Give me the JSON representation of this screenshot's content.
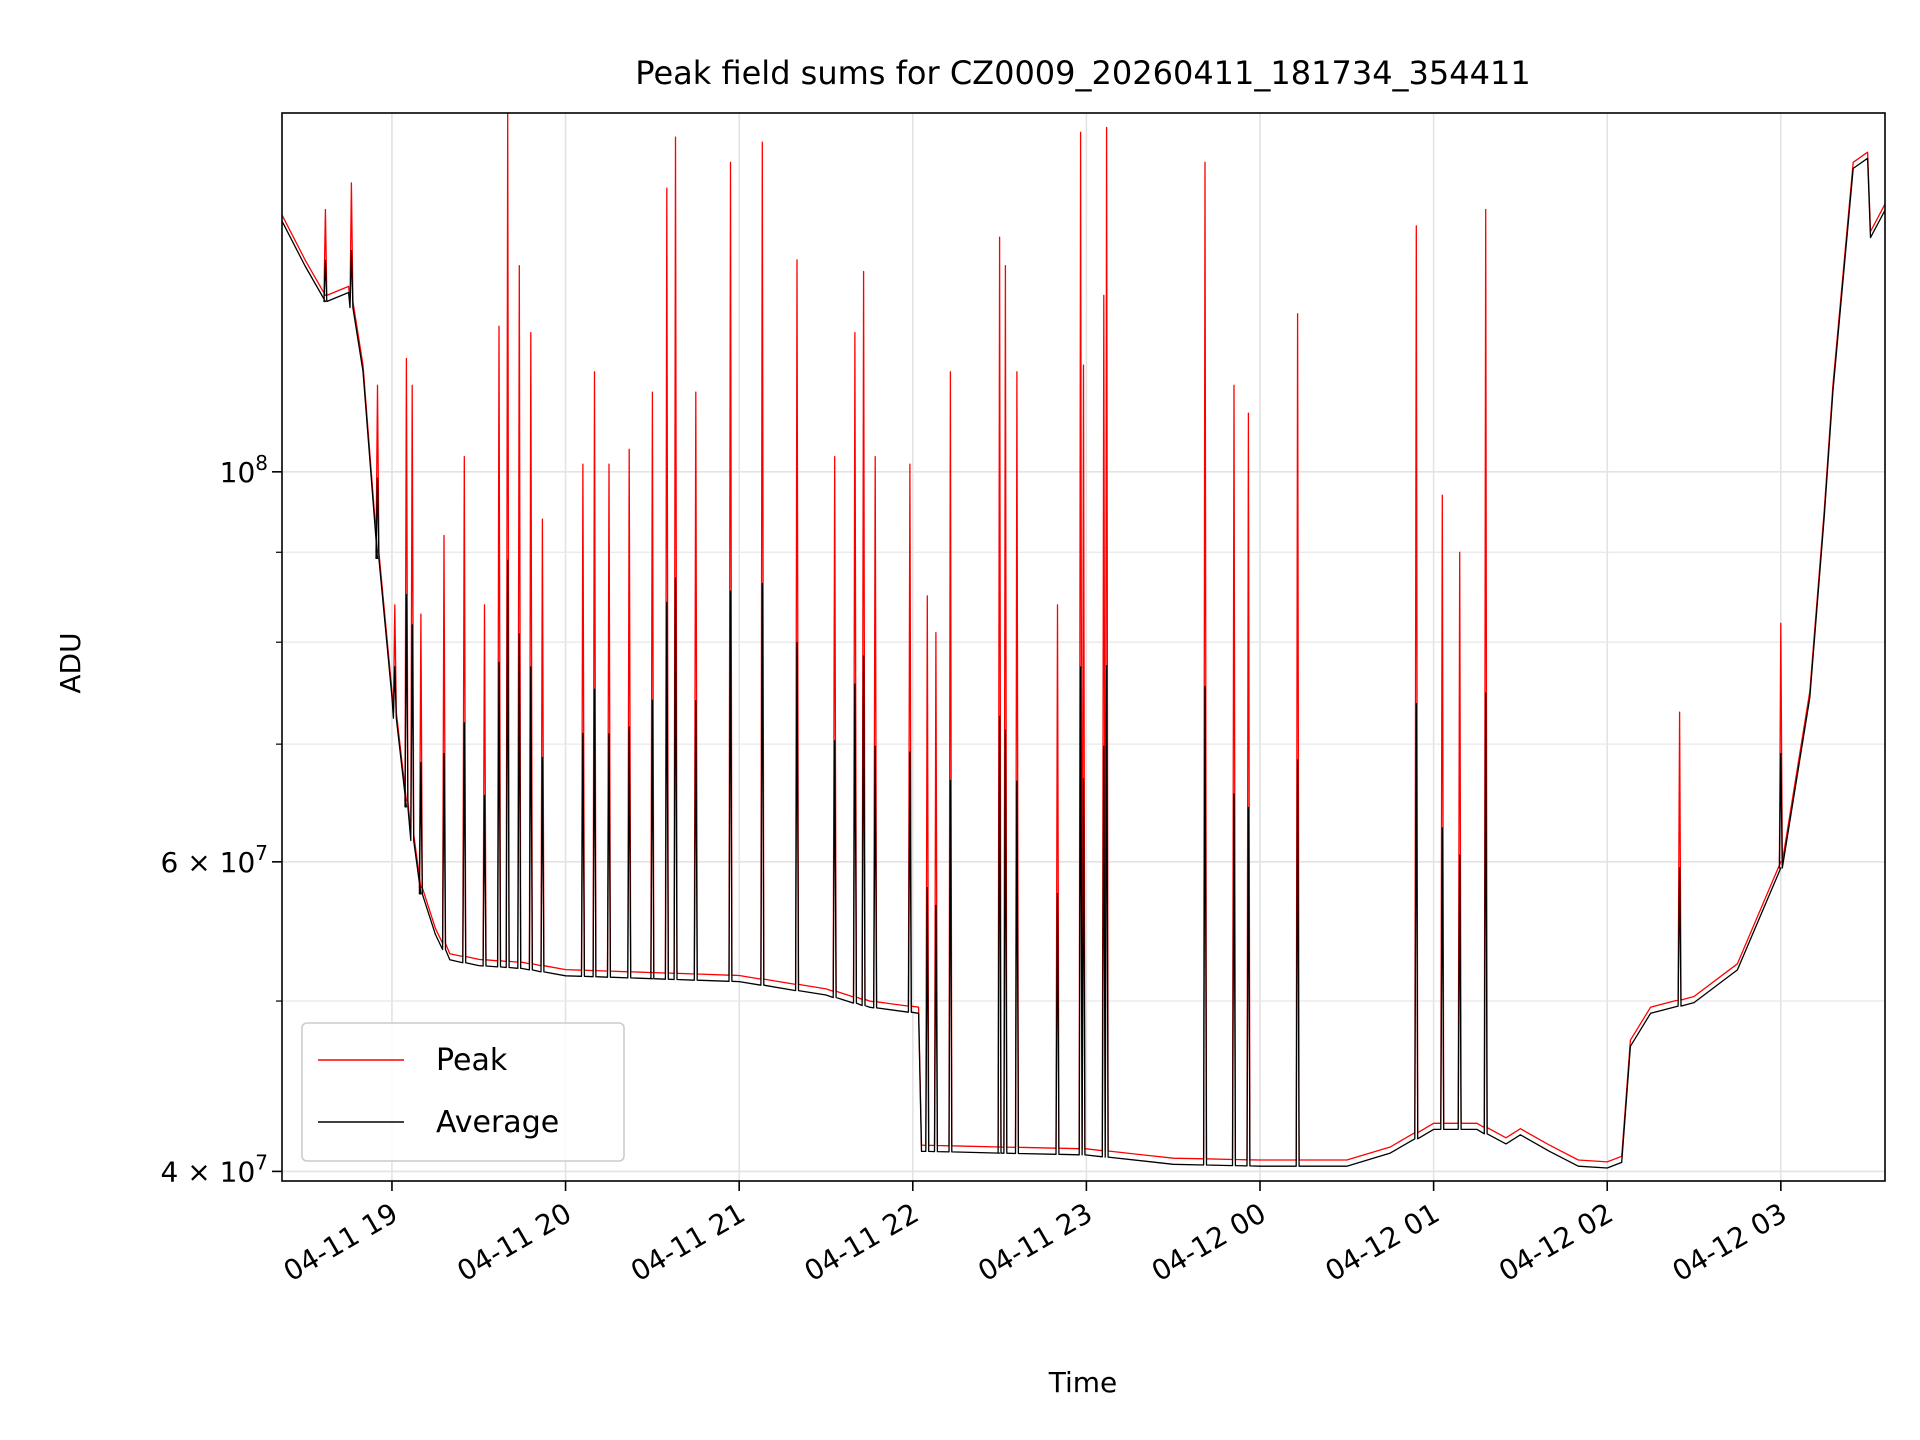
{
  "chart_data": {
    "type": "line",
    "title": "Peak field sums for CZ0009_20260411_181734_354411",
    "xlabel": "Time",
    "ylabel": "ADU",
    "y_scale": "log",
    "ylim": [
      39500000,
      160000000
    ],
    "xlim": [
      "2026-04-11 18:22",
      "2026-04-12 03:36"
    ],
    "grid": true,
    "legend_position": "lower-left",
    "x_ticks": [
      {
        "t": "2026-04-11 19:00",
        "label": "04-11 19"
      },
      {
        "t": "2026-04-11 20:00",
        "label": "04-11 20"
      },
      {
        "t": "2026-04-11 21:00",
        "label": "04-11 21"
      },
      {
        "t": "2026-04-11 22:00",
        "label": "04-11 22"
      },
      {
        "t": "2026-04-11 23:00",
        "label": "04-11 23"
      },
      {
        "t": "2026-04-12 00:00",
        "label": "04-12 00"
      },
      {
        "t": "2026-04-12 01:00",
        "label": "04-12 01"
      },
      {
        "t": "2026-04-12 02:00",
        "label": "04-12 02"
      },
      {
        "t": "2026-04-12 03:00",
        "label": "04-12 03"
      }
    ],
    "y_ticks_major": [
      {
        "v": 40000000,
        "label": "4 × 10",
        "exp": "7"
      },
      {
        "v": 60000000,
        "label": "6 × 10",
        "exp": "7"
      },
      {
        "v": 100000000,
        "label": "10",
        "exp": "8"
      }
    ],
    "y_ticks_minor": [
      50000000,
      70000000,
      80000000,
      90000000
    ],
    "series": [
      {
        "name": "Peak",
        "color": "#ff0000",
        "baseline": [
          [
            "2026-04-11 18:22",
            140000000
          ],
          [
            "2026-04-11 18:30",
            132000000
          ],
          [
            "2026-04-11 18:37",
            126000000
          ],
          [
            "2026-04-11 18:45",
            127500000
          ],
          [
            "2026-04-11 18:50",
            115000000
          ],
          [
            "2026-04-11 18:55",
            90000000
          ],
          [
            "2026-04-11 19:00",
            75000000
          ],
          [
            "2026-04-11 19:05",
            65000000
          ],
          [
            "2026-04-11 19:10",
            58000000
          ],
          [
            "2026-04-11 19:15",
            55000000
          ],
          [
            "2026-04-11 19:20",
            53200000
          ],
          [
            "2026-04-11 19:30",
            52800000
          ],
          [
            "2026-04-11 19:45",
            52600000
          ],
          [
            "2026-04-11 20:00",
            52100000
          ],
          [
            "2026-04-11 20:30",
            51900000
          ],
          [
            "2026-04-11 21:00",
            51700000
          ],
          [
            "2026-04-11 21:30",
            50800000
          ],
          [
            "2026-04-11 21:45",
            50000000
          ],
          [
            "2026-04-11 22:02",
            49600000
          ],
          [
            "2026-04-11 22:03",
            41400000
          ],
          [
            "2026-04-11 22:30",
            41300000
          ],
          [
            "2026-04-11 23:00",
            41200000
          ],
          [
            "2026-04-11 23:30",
            40700000
          ],
          [
            "2026-04-12 00:00",
            40600000
          ],
          [
            "2026-04-12 00:30",
            40600000
          ],
          [
            "2026-04-12 00:45",
            41300000
          ],
          [
            "2026-04-12 01:00",
            42600000
          ],
          [
            "2026-04-12 01:15",
            42600000
          ],
          [
            "2026-04-12 01:25",
            41800000
          ],
          [
            "2026-04-12 01:30",
            42300000
          ],
          [
            "2026-04-12 01:40",
            41400000
          ],
          [
            "2026-04-12 01:50",
            40600000
          ],
          [
            "2026-04-12 02:00",
            40500000
          ],
          [
            "2026-04-12 02:05",
            40800000
          ],
          [
            "2026-04-12 02:08",
            47500000
          ],
          [
            "2026-04-12 02:15",
            49600000
          ],
          [
            "2026-04-12 02:30",
            50300000
          ],
          [
            "2026-04-12 02:45",
            52500000
          ],
          [
            "2026-04-12 03:00",
            60000000
          ],
          [
            "2026-04-12 03:10",
            75000000
          ],
          [
            "2026-04-12 03:15",
            95000000
          ],
          [
            "2026-04-12 03:18",
            112000000
          ],
          [
            "2026-04-12 03:25",
            150000000
          ],
          [
            "2026-04-12 03:30",
            152000000
          ],
          [
            "2026-04-12 03:31",
            137000000
          ],
          [
            "2026-04-12 03:36",
            142000000
          ]
        ],
        "spikes": [
          [
            "2026-04-11 18:37",
            141000000
          ],
          [
            "2026-04-11 18:46",
            146000000
          ],
          [
            "2026-04-11 18:55",
            112000000
          ],
          [
            "2026-04-11 19:01",
            84000000
          ],
          [
            "2026-04-11 19:05",
            116000000
          ],
          [
            "2026-04-11 19:07",
            112000000
          ],
          [
            "2026-04-11 19:10",
            83000000
          ],
          [
            "2026-04-11 19:18",
            92000000
          ],
          [
            "2026-04-11 19:25",
            102000000
          ],
          [
            "2026-04-11 19:32",
            84000000
          ],
          [
            "2026-04-11 19:37",
            121000000
          ],
          [
            "2026-04-11 19:40",
            160000000
          ],
          [
            "2026-04-11 19:44",
            131000000
          ],
          [
            "2026-04-11 19:48",
            120000000
          ],
          [
            "2026-04-11 19:52",
            94000000
          ],
          [
            "2026-04-11 20:06",
            101000000
          ],
          [
            "2026-04-11 20:10",
            114000000
          ],
          [
            "2026-04-11 20:15",
            101000000
          ],
          [
            "2026-04-11 20:22",
            103000000
          ],
          [
            "2026-04-11 20:30",
            111000000
          ],
          [
            "2026-04-11 20:35",
            145000000
          ],
          [
            "2026-04-11 20:38",
            155000000
          ],
          [
            "2026-04-11 20:45",
            111000000
          ],
          [
            "2026-04-11 20:57",
            150000000
          ],
          [
            "2026-04-11 21:08",
            154000000
          ],
          [
            "2026-04-11 21:20",
            132000000
          ],
          [
            "2026-04-11 21:33",
            102000000
          ],
          [
            "2026-04-11 21:40",
            120000000
          ],
          [
            "2026-04-11 21:43",
            130000000
          ],
          [
            "2026-04-11 21:47",
            102000000
          ],
          [
            "2026-04-11 21:59",
            101000000
          ],
          [
            "2026-04-11 22:05",
            85000000
          ],
          [
            "2026-04-11 22:08",
            81000000
          ],
          [
            "2026-04-11 22:13",
            114000000
          ],
          [
            "2026-04-11 22:30",
            136000000
          ],
          [
            "2026-04-11 22:32",
            131000000
          ],
          [
            "2026-04-11 22:36",
            114000000
          ],
          [
            "2026-04-11 22:50",
            84000000
          ],
          [
            "2026-04-11 22:58",
            156000000
          ],
          [
            "2026-04-11 22:59",
            115000000
          ],
          [
            "2026-04-11 23:07",
            157000000
          ],
          [
            "2026-04-11 23:06",
            126000000
          ],
          [
            "2026-04-11 23:41",
            150000000
          ],
          [
            "2026-04-11 23:51",
            112000000
          ],
          [
            "2026-04-11 23:56",
            108000000
          ],
          [
            "2026-04-12 00:13",
            123000000
          ],
          [
            "2026-04-12 00:54",
            138000000
          ],
          [
            "2026-04-12 01:03",
            97000000
          ],
          [
            "2026-04-12 01:09",
            90000000
          ],
          [
            "2026-04-12 01:18",
            141000000
          ],
          [
            "2026-04-12 02:25",
            73000000
          ],
          [
            "2026-04-12 03:00",
            82000000
          ]
        ]
      },
      {
        "name": "Average",
        "color": "#000000",
        "spike_ratio": 0.48
      }
    ]
  }
}
